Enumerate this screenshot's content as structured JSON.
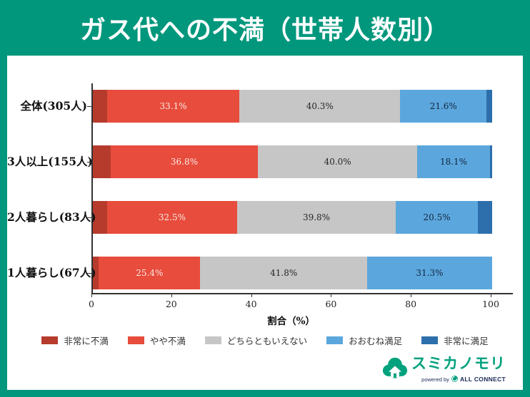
{
  "banner": {
    "title": "ガス代への不満（世帯人数別）",
    "bg_color": "#00977d",
    "title_color": "#ffffff"
  },
  "chart_data": {
    "type": "bar",
    "orientation": "horizontal-stacked",
    "title": "ガス代への不満（世帯人数別）",
    "categories": [
      "全体(305人)",
      "3人以上(155人)",
      "2人暮らし(83人)",
      "1人暮らし(67人)"
    ],
    "series": [
      {
        "name": "非常に不満",
        "color": "#b63b2d",
        "label_color": "#fbe9e5",
        "show_label": false,
        "values": [
          3.6,
          4.5,
          3.6,
          1.5
        ]
      },
      {
        "name": "やや不満",
        "color": "#e74c3c",
        "label_color": "#fbe9e5",
        "show_label": true,
        "values": [
          33.1,
          36.8,
          32.5,
          25.4
        ]
      },
      {
        "name": "どちらともいえない",
        "color": "#c6c6c6",
        "label_color": "#26262b",
        "show_label": true,
        "values": [
          40.3,
          40.0,
          39.8,
          41.8
        ]
      },
      {
        "name": "おおむね満足",
        "color": "#5ba7dd",
        "label_color": "#14233f",
        "show_label": true,
        "values": [
          21.6,
          18.1,
          20.5,
          31.3
        ]
      },
      {
        "name": "非常に満足",
        "color": "#2d6fac",
        "label_color": "#ffffff",
        "show_label": false,
        "values": [
          1.4,
          0.6,
          3.6,
          0.0
        ]
      }
    ],
    "xlabel": "割合（%）",
    "x_ticks": [
      0,
      20,
      40,
      60,
      80,
      100
    ],
    "xlim": [
      0,
      100
    ],
    "grid": false,
    "legend_position": "bottom",
    "note": "unlabeled small segments estimated from pixel widths"
  },
  "footer_logo": {
    "brand": "スミカノモリ",
    "powered_by": "powered by",
    "company": "ALL CONNECT",
    "brand_color": "#00a17d",
    "company_color": "#1b2a56"
  }
}
